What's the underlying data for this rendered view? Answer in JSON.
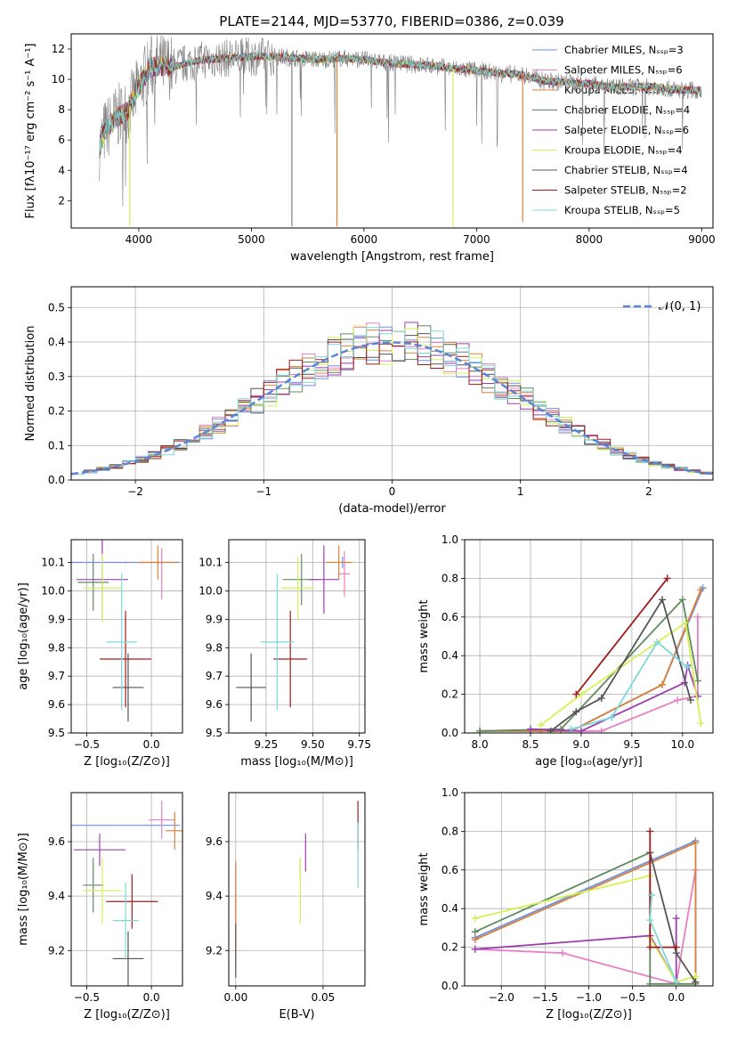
{
  "colors": [
    "#6c8ee6",
    "#e87fc4",
    "#d9823b",
    "#5f8c5f",
    "#9b3fb0",
    "#d6f055",
    "#555555",
    "#a01c1c",
    "#7fd8d8"
  ],
  "chart_data": [
    {
      "id": "spectrum",
      "type": "line",
      "title": "PLATE=2144, MJD=53770, FIBERID=0386, z=0.039",
      "xlabel": "wavelength [Angstrom, rest frame]",
      "ylabel": "Flux [fλ10⁻¹⁷ erg cm⁻² s⁻¹ A⁻¹]",
      "xlim": [
        3400,
        9100
      ],
      "ylim": [
        0.2,
        13
      ],
      "xticks": [
        4000,
        5000,
        6000,
        7000,
        8000,
        9000
      ],
      "yticks": [
        2,
        4,
        6,
        8,
        10,
        12
      ],
      "data_color": "#808080",
      "continuum": {
        "x": [
          3650,
          3700,
          3800,
          3900,
          4000,
          4100,
          4200,
          4300,
          4400,
          4500,
          4600,
          4800,
          5000,
          5200,
          5400,
          5600,
          5800,
          6000,
          6200,
          6400,
          6600,
          6800,
          7000,
          7200,
          7400,
          7500,
          7600,
          7800,
          8000,
          8200,
          8400,
          8600,
          8800,
          9000
        ],
        "y": [
          5.5,
          6.6,
          7.5,
          7.9,
          9.5,
          10.8,
          10.9,
          10.8,
          11.0,
          11.2,
          11.3,
          11.4,
          11.5,
          11.5,
          11.4,
          11.3,
          11.4,
          11.3,
          11.1,
          11.0,
          10.9,
          10.7,
          10.6,
          10.4,
          10.3,
          10.1,
          9.9,
          9.8,
          9.7,
          9.5,
          9.5,
          9.5,
          9.3,
          9.3
        ]
      },
      "dips": [
        {
          "x": 5760,
          "y": 0.3,
          "color": "#d9823b"
        },
        {
          "x": 6790,
          "y": 0.3,
          "color": "#d6f055"
        },
        {
          "x": 7410,
          "y": 0.6,
          "color": "#d9823b"
        },
        {
          "x": 3920,
          "y": 0.3,
          "color": "#d6f055"
        },
        {
          "x": 5360,
          "y": 0.3,
          "color": "#808080"
        }
      ],
      "legend": [
        {
          "label": "Chabrier MILES, Nₛₛₚ=3"
        },
        {
          "label": "Salpeter MILES, Nₛₛₚ=6"
        },
        {
          "label": "Kroupa MILES, Nₛₛₚ=3"
        },
        {
          "label": "Chabrier ELODIE, Nₛₛₚ=4"
        },
        {
          "label": "Salpeter ELODIE, Nₛₛₚ=6"
        },
        {
          "label": "Kroupa ELODIE, Nₛₛₚ=4"
        },
        {
          "label": "Chabrier STELIB, Nₛₛₚ=4"
        },
        {
          "label": "Salpeter STELIB, Nₛₛₚ=2"
        },
        {
          "label": "Kroupa STELIB, Nₛₛₚ=5"
        }
      ]
    },
    {
      "id": "residuals",
      "type": "histogram",
      "xlabel": "(data-model)/error",
      "ylabel": "Normed distribution",
      "xlim": [
        -2.5,
        2.5
      ],
      "ylim": [
        0,
        0.56
      ],
      "xticks": [
        -2,
        -1,
        0,
        1,
        2
      ],
      "xticklabels": [
        "−2",
        "−1",
        "0",
        "1",
        "2"
      ],
      "yticks": [
        0.0,
        0.1,
        0.2,
        0.3,
        0.4,
        0.5
      ],
      "bin_width": 0.1,
      "normal_curve": {
        "label": "𝒩(0, 1)",
        "color": "#5b86d8"
      }
    },
    {
      "id": "age-vs-Z",
      "type": "errorbar",
      "xlabel": "Z [log₁₀(Z/Z⊙)]",
      "ylabel": "age  [log₁₀(age/yr)]",
      "xlim": [
        -0.62,
        0.24
      ],
      "ylim": [
        9.5,
        10.18
      ],
      "xticks": [
        -0.5,
        0.0
      ],
      "xticklabels": [
        "−0.5",
        "0.0"
      ],
      "yticks": [
        9.5,
        9.6,
        9.7,
        9.8,
        9.9,
        10.0,
        10.1
      ],
      "points": [
        {
          "x": -0.2,
          "xerr": 0.42,
          "y": 10.1,
          "yerr": 0.003
        },
        {
          "x": 0.08,
          "xerr": 0.0,
          "y": 10.06,
          "yerr": 0.09
        },
        {
          "x": 0.05,
          "xerr": 0.15,
          "y": 10.1,
          "yerr": 0.06
        },
        {
          "x": -0.45,
          "xerr": 0.12,
          "y": 10.03,
          "yerr": 0.1
        },
        {
          "x": -0.38,
          "xerr": 0.2,
          "y": 10.04,
          "yerr": 0.14
        },
        {
          "x": -0.38,
          "xerr": 0.15,
          "y": 10.01,
          "yerr": 0.12
        },
        {
          "x": -0.18,
          "xerr": 0.12,
          "y": 9.66,
          "yerr": 0.12
        },
        {
          "x": -0.2,
          "xerr": 0.2,
          "y": 9.76,
          "yerr": 0.17
        },
        {
          "x": -0.23,
          "xerr": 0.12,
          "y": 9.82,
          "yerr": 0.24
        }
      ]
    },
    {
      "id": "age-vs-mass",
      "type": "errorbar",
      "xlabel": "mass [log₁₀(M/M⊙)]",
      "ylabel": "",
      "xlim": [
        9.05,
        9.78
      ],
      "ylim": [
        9.5,
        10.18
      ],
      "xticks": [
        9.25,
        9.5,
        9.75
      ],
      "yticks": [
        9.5,
        9.6,
        9.7,
        9.8,
        9.9,
        10.0,
        10.1
      ],
      "points": [
        {
          "x": 9.66,
          "xerr": 0.0,
          "y": 10.1,
          "yerr": 0.02
        },
        {
          "x": 9.67,
          "xerr": 0.03,
          "y": 10.06,
          "yerr": 0.08
        },
        {
          "x": 9.64,
          "xerr": 0.07,
          "y": 10.1,
          "yerr": 0.06
        },
        {
          "x": 9.44,
          "xerr": 0.1,
          "y": 10.04,
          "yerr": 0.09
        },
        {
          "x": 9.56,
          "xerr": 0.08,
          "y": 10.04,
          "yerr": 0.12
        },
        {
          "x": 9.42,
          "xerr": 0.09,
          "y": 10.01,
          "yerr": 0.11
        },
        {
          "x": 9.17,
          "xerr": 0.08,
          "y": 9.66,
          "yerr": 0.12
        },
        {
          "x": 9.38,
          "xerr": 0.09,
          "y": 9.76,
          "yerr": 0.17
        },
        {
          "x": 9.31,
          "xerr": 0.09,
          "y": 9.82,
          "yerr": 0.24
        }
      ]
    },
    {
      "id": "weight-vs-age",
      "type": "line",
      "xlabel": "age  [log₁₀(age/yr)]",
      "ylabel": "mass weight",
      "xlim": [
        7.85,
        10.3
      ],
      "ylim": [
        0,
        1
      ],
      "xticks": [
        8.0,
        8.5,
        9.0,
        9.5,
        10.0
      ],
      "yticks": [
        0.0,
        0.2,
        0.4,
        0.6,
        0.8,
        1.0
      ],
      "series": [
        {
          "x": [
            8.0,
            8.5,
            8.9,
            9.8,
            10.2
          ],
          "y": [
            0.01,
            0.01,
            0.01,
            0.25,
            0.75
          ]
        },
        {
          "x": [
            8.5,
            9.2,
            9.95,
            10.15,
            10.15
          ],
          "y": [
            0.01,
            0.01,
            0.17,
            0.19,
            0.6
          ]
        },
        {
          "x": [
            8.0,
            8.6,
            8.9,
            9.8,
            10.18
          ],
          "y": [
            0.01,
            0.01,
            0.01,
            0.25,
            0.74
          ]
        },
        {
          "x": [
            8.0,
            8.8,
            10.0,
            10.15
          ],
          "y": [
            0.01,
            0.02,
            0.69,
            0.27
          ]
        },
        {
          "x": [
            8.5,
            9.0,
            10.02,
            10.05,
            10.15
          ],
          "y": [
            0.02,
            0.01,
            0.26,
            0.35,
            0.19
          ]
        },
        {
          "x": [
            8.6,
            9.0,
            10.03,
            10.18
          ],
          "y": [
            0.04,
            0.2,
            0.57,
            0.05
          ]
        },
        {
          "x": [
            8.7,
            8.95,
            9.2,
            9.8,
            10.08
          ],
          "y": [
            0.01,
            0.11,
            0.18,
            0.69,
            0.17
          ]
        },
        {
          "x": [
            8.95,
            9.85
          ],
          "y": [
            0.2,
            0.8
          ]
        },
        {
          "x": [
            8.9,
            9.3,
            9.75,
            10.05
          ],
          "y": [
            0.02,
            0.08,
            0.47,
            0.34
          ]
        }
      ]
    },
    {
      "id": "mass-vs-Z",
      "type": "errorbar",
      "xlabel": "Z [log₁₀(Z/Z⊙)]",
      "ylabel": "mass [log₁₀(M/M⊙)]",
      "xlim": [
        -0.62,
        0.24
      ],
      "ylim": [
        9.07,
        9.78
      ],
      "xticks": [
        -0.5,
        0.0
      ],
      "xticklabels": [
        "−0.5",
        "0.0"
      ],
      "yticks": [
        9.2,
        9.4,
        9.6
      ],
      "points": [
        {
          "x": -0.2,
          "xerr": 0.42,
          "y": 9.66,
          "yerr": 0.0
        },
        {
          "x": 0.08,
          "xerr": 0.1,
          "y": 9.68,
          "yerr": 0.07
        },
        {
          "x": 0.18,
          "xerr": 0.07,
          "y": 9.64,
          "yerr": 0.07
        },
        {
          "x": -0.45,
          "xerr": 0.08,
          "y": 9.44,
          "yerr": 0.1
        },
        {
          "x": -0.4,
          "xerr": 0.2,
          "y": 9.57,
          "yerr": 0.06
        },
        {
          "x": -0.38,
          "xerr": 0.15,
          "y": 9.42,
          "yerr": 0.12
        },
        {
          "x": -0.18,
          "xerr": 0.12,
          "y": 9.17,
          "yerr": 0.1
        },
        {
          "x": -0.15,
          "xerr": 0.2,
          "y": 9.38,
          "yerr": 0.1
        },
        {
          "x": -0.2,
          "xerr": 0.1,
          "y": 9.31,
          "yerr": 0.14
        }
      ]
    },
    {
      "id": "mass-vs-EBV",
      "type": "errorbar",
      "xlabel": "E(B-V)",
      "ylabel": "",
      "xlim": [
        -0.004,
        0.074
      ],
      "ylim": [
        9.07,
        9.78
      ],
      "xticks": [
        0.0,
        0.05
      ],
      "xticklabels": [
        "0.00",
        "0.05"
      ],
      "yticks": [
        9.2,
        9.4,
        9.6
      ],
      "points": [
        {
          "x": 0.0,
          "xerr": 0.0,
          "y": 9.42,
          "yerr": 0.09
        },
        {
          "x": 0.0,
          "xerr": 0.0,
          "y": 9.25,
          "yerr": 0.14
        },
        {
          "x": 0.0,
          "xerr": 0.0,
          "y": 9.35,
          "yerr": 0.18
        },
        {
          "x": 0.037,
          "xerr": 0.0,
          "y": 9.5,
          "yerr": 0.04
        },
        {
          "x": 0.04,
          "xerr": 0.0,
          "y": 9.56,
          "yerr": 0.07
        },
        {
          "x": 0.037,
          "xerr": 0.0,
          "y": 9.42,
          "yerr": 0.12
        },
        {
          "x": 0.0,
          "xerr": 0.0,
          "y": 9.2,
          "yerr": 0.1
        },
        {
          "x": 0.07,
          "xerr": 0.0,
          "y": 9.66,
          "yerr": 0.09
        },
        {
          "x": 0.07,
          "xerr": 0.0,
          "y": 9.55,
          "yerr": 0.12
        }
      ]
    },
    {
      "id": "weight-vs-Z",
      "type": "line",
      "xlabel": "Z [log₁₀(Z/Z⊙)]",
      "ylabel": "mass weight",
      "xlim": [
        -2.42,
        0.42
      ],
      "ylim": [
        0,
        1
      ],
      "xticks": [
        -2.0,
        -1.5,
        -1.0,
        -0.5,
        0.0
      ],
      "xticklabels": [
        "−2.0",
        "−1.5",
        "−1.0",
        "−0.5",
        "0.0"
      ],
      "yticks": [
        0.0,
        0.2,
        0.4,
        0.6,
        0.8,
        1.0
      ],
      "series": [
        {
          "x": [
            -2.3,
            0.22,
            0.22
          ],
          "y": [
            0.25,
            0.75,
            0.01
          ]
        },
        {
          "x": [
            -2.3,
            -1.3,
            0.0,
            0.22,
            0.22
          ],
          "y": [
            0.19,
            0.17,
            0.01,
            0.6,
            0.02
          ]
        },
        {
          "x": [
            -2.3,
            0.22,
            0.22
          ],
          "y": [
            0.24,
            0.74,
            0.02
          ]
        },
        {
          "x": [
            -2.3,
            -0.3,
            -0.3,
            0.22
          ],
          "y": [
            0.28,
            0.69,
            0.01,
            0.01
          ]
        },
        {
          "x": [
            -2.3,
            -0.3,
            0.0,
            0.0
          ],
          "y": [
            0.19,
            0.26,
            0.02,
            0.35
          ]
        },
        {
          "x": [
            -2.3,
            -0.3,
            -0.3,
            0.0,
            0.22,
            0.22
          ],
          "y": [
            0.35,
            0.57,
            0.25,
            0.02,
            0.05,
            0.04
          ]
        },
        {
          "x": [
            -0.3,
            0.0,
            0.22
          ],
          "y": [
            0.69,
            0.17,
            0.02
          ]
        },
        {
          "x": [
            -0.3,
            -0.3,
            0.0
          ],
          "y": [
            0.8,
            0.2,
            0.2
          ]
        },
        {
          "x": [
            -0.28,
            -0.3,
            0.0
          ],
          "y": [
            0.47,
            0.34,
            0.02
          ]
        }
      ]
    }
  ]
}
